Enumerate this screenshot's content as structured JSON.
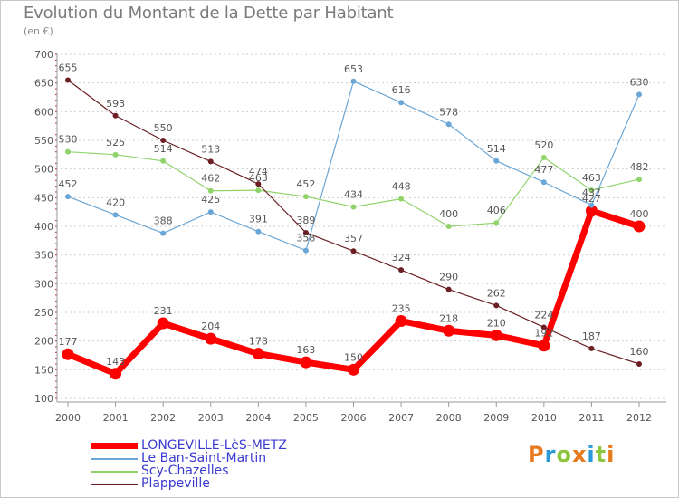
{
  "title": "Evolution du Montant de la Dette par Habitant",
  "subtitle": "(en €)",
  "logo": {
    "text": "Proxiti",
    "letters": [
      {
        "ch": "P",
        "color": "#e87a1e"
      },
      {
        "ch": "r",
        "color": "#2a9ad8"
      },
      {
        "ch": "o",
        "color": "#8cc63f"
      },
      {
        "ch": "x",
        "color": "#e87a1e"
      },
      {
        "ch": "i",
        "color": "#2a9ad8"
      },
      {
        "ch": "t",
        "color": "#8cc63f"
      },
      {
        "ch": "i",
        "color": "#e87a1e"
      }
    ]
  },
  "chart_data": {
    "type": "line",
    "title": "Evolution du Montant de la Dette par Habitant",
    "subtitle": "(en €)",
    "xlabel": "",
    "ylabel": "",
    "x": [
      "2000",
      "2001",
      "2002",
      "2003",
      "2004",
      "2005",
      "2006",
      "2007",
      "2008",
      "2009",
      "2010",
      "2011",
      "2012"
    ],
    "ylim": [
      100,
      700
    ],
    "yticks": [
      100,
      150,
      200,
      250,
      300,
      350,
      400,
      450,
      500,
      550,
      600,
      650,
      700
    ],
    "grid": "horizontal dashed",
    "legend_position": "bottom",
    "series": [
      {
        "name": "LONGEVILLE-LèS-METZ",
        "color": "#ff0000",
        "width": 7,
        "values": [
          177,
          143,
          231,
          204,
          178,
          163,
          150,
          235,
          218,
          210,
          192,
          427,
          400
        ]
      },
      {
        "name": "Le Ban-Saint-Martin",
        "color": "#6aa6d6",
        "width": 1.2,
        "values": [
          452,
          420,
          388,
          425,
          391,
          358,
          653,
          616,
          578,
          514,
          477,
          437,
          630
        ]
      },
      {
        "name": "Scy-Chazelles",
        "color": "#8fd36a",
        "width": 1.2,
        "values": [
          530,
          525,
          514,
          462,
          463,
          452,
          434,
          448,
          400,
          406,
          520,
          463,
          482
        ]
      },
      {
        "name": "Plappeville",
        "color": "#6b1f23",
        "width": 1.2,
        "values": [
          655,
          593,
          550,
          513,
          474,
          389,
          357,
          324,
          290,
          262,
          224,
          187,
          160
        ]
      }
    ]
  }
}
